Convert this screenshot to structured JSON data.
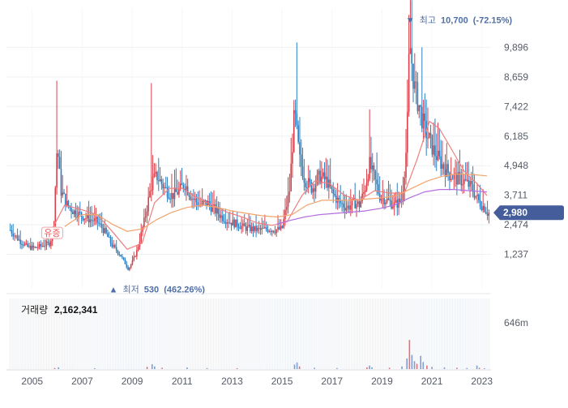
{
  "chart_data": [
    {
      "type": "candlestick",
      "y_ticks": [
        "9,896",
        "8,659",
        "7,422",
        "6,185",
        "4,948",
        "3,711",
        "2,474",
        "1,237"
      ],
      "ylim": [
        0,
        11200
      ],
      "x_ticks": [
        "2005",
        "2007",
        "2009",
        "2011",
        "2013",
        "2015",
        "2017",
        "2019",
        "2021",
        "2023"
      ],
      "xlim": [
        2004.1,
        2023.3
      ],
      "current_price_label": "2,980",
      "current_price": 2980,
      "high": {
        "marker": "▼",
        "label": "최고",
        "value": "10,700",
        "change": "(-72.15%)",
        "x": 2020.05,
        "y": 10700
      },
      "low": {
        "marker": "▲",
        "label": "최저",
        "value": "530",
        "change": "(462.26%)",
        "x": 2008.3,
        "y": 530
      },
      "event_label": "유증",
      "event_x": 2005.8,
      "price_path": [
        [
          2004.12,
          2250
        ],
        [
          2004.5,
          1800
        ],
        [
          2004.8,
          1550
        ],
        [
          2005.1,
          1500
        ],
        [
          2005.4,
          1600
        ],
        [
          2005.7,
          1700
        ],
        [
          2005.85,
          2200
        ],
        [
          2006.0,
          5900
        ],
        [
          2006.15,
          3900
        ],
        [
          2006.4,
          3300
        ],
        [
          2006.7,
          3000
        ],
        [
          2007.0,
          2850
        ],
        [
          2007.3,
          2700
        ],
        [
          2007.6,
          2600
        ],
        [
          2007.9,
          2200
        ],
        [
          2008.2,
          1600
        ],
        [
          2008.5,
          1250
        ],
        [
          2008.7,
          900
        ],
        [
          2008.85,
          600
        ],
        [
          2009.0,
          900
        ],
        [
          2009.2,
          1400
        ],
        [
          2009.5,
          2700
        ],
        [
          2009.8,
          4300
        ],
        [
          2010.0,
          4500
        ],
        [
          2010.3,
          4000
        ],
        [
          2010.6,
          3700
        ],
        [
          2010.9,
          3900
        ],
        [
          2011.1,
          4200
        ],
        [
          2011.4,
          3600
        ],
        [
          2011.7,
          3300
        ],
        [
          2012.0,
          3400
        ],
        [
          2012.3,
          3100
        ],
        [
          2012.6,
          2800
        ],
        [
          2012.9,
          2600
        ],
        [
          2013.2,
          2500
        ],
        [
          2013.5,
          2350
        ],
        [
          2013.8,
          2300
        ],
        [
          2014.1,
          2250
        ],
        [
          2014.4,
          2300
        ],
        [
          2014.7,
          2250
        ],
        [
          2015.0,
          2300
        ],
        [
          2015.3,
          3900
        ],
        [
          2015.5,
          7200
        ],
        [
          2015.7,
          5200
        ],
        [
          2015.9,
          4400
        ],
        [
          2016.2,
          4000
        ],
        [
          2016.5,
          4500
        ],
        [
          2016.8,
          4300
        ],
        [
          2017.0,
          3800
        ],
        [
          2017.3,
          3400
        ],
        [
          2017.6,
          3200
        ],
        [
          2017.9,
          3400
        ],
        [
          2018.1,
          3300
        ],
        [
          2018.3,
          3900
        ],
        [
          2018.5,
          5000
        ],
        [
          2018.7,
          4400
        ],
        [
          2018.9,
          3700
        ],
        [
          2019.2,
          3500
        ],
        [
          2019.5,
          3300
        ],
        [
          2019.8,
          3500
        ],
        [
          2020.0,
          6000
        ],
        [
          2020.1,
          10200
        ],
        [
          2020.3,
          8200
        ],
        [
          2020.5,
          7400
        ],
        [
          2020.7,
          6500
        ],
        [
          2020.9,
          6000
        ],
        [
          2021.1,
          5500
        ],
        [
          2021.4,
          5000
        ],
        [
          2021.7,
          4600
        ],
        [
          2022.0,
          4400
        ],
        [
          2022.3,
          4300
        ],
        [
          2022.6,
          4000
        ],
        [
          2022.9,
          3400
        ],
        [
          2023.1,
          3200
        ],
        [
          2023.2,
          2980
        ]
      ],
      "spikes": [
        [
          2006.0,
          8500
        ],
        [
          2009.75,
          8400
        ],
        [
          2015.6,
          10100
        ],
        [
          2018.5,
          7300
        ],
        [
          2020.05,
          10700
        ],
        [
          2020.3,
          9600
        ],
        [
          2020.6,
          9900
        ],
        [
          2018.8,
          5500
        ]
      ],
      "moving_averages": [
        {
          "color": "#ef7e7e",
          "points": [
            [
              2005.5,
              1700
            ],
            [
              2006.3,
              3300
            ],
            [
              2007.0,
              3100
            ],
            [
              2007.6,
              2900
            ],
            [
              2008.2,
              2200
            ],
            [
              2008.8,
              1450
            ],
            [
              2009.4,
              1700
            ],
            [
              2009.9,
              3400
            ],
            [
              2010.5,
              4000
            ],
            [
              2011.0,
              4000
            ],
            [
              2011.6,
              3600
            ],
            [
              2012.2,
              3300
            ],
            [
              2012.8,
              3000
            ],
            [
              2013.4,
              2800
            ],
            [
              2014.0,
              2550
            ],
            [
              2014.6,
              2450
            ],
            [
              2015.2,
              2600
            ],
            [
              2015.8,
              3700
            ],
            [
              2016.3,
              4300
            ],
            [
              2016.9,
              4200
            ],
            [
              2017.5,
              3700
            ],
            [
              2018.1,
              3500
            ],
            [
              2018.7,
              3900
            ],
            [
              2019.3,
              3800
            ],
            [
              2019.9,
              3800
            ],
            [
              2020.4,
              5200
            ],
            [
              2020.9,
              6800
            ],
            [
              2021.3,
              6500
            ],
            [
              2021.8,
              5600
            ],
            [
              2022.3,
              4700
            ],
            [
              2022.8,
              4200
            ],
            [
              2023.2,
              3700
            ]
          ]
        },
        {
          "color": "#f2a46d",
          "points": [
            [
              2006.3,
              2400
            ],
            [
              2007.0,
              2900
            ],
            [
              2007.6,
              2900
            ],
            [
              2008.2,
              2500
            ],
            [
              2008.8,
              2200
            ],
            [
              2009.4,
              2300
            ],
            [
              2010.0,
              2700
            ],
            [
              2010.6,
              3000
            ],
            [
              2011.2,
              3200
            ],
            [
              2011.8,
              3300
            ],
            [
              2012.4,
              3200
            ],
            [
              2013.0,
              3050
            ],
            [
              2013.6,
              2950
            ],
            [
              2014.2,
              2850
            ],
            [
              2014.8,
              2800
            ],
            [
              2015.4,
              2900
            ],
            [
              2016.0,
              3300
            ],
            [
              2016.6,
              3500
            ],
            [
              2017.2,
              3500
            ],
            [
              2017.8,
              3500
            ],
            [
              2018.4,
              3550
            ],
            [
              2019.0,
              3600
            ],
            [
              2019.6,
              3700
            ],
            [
              2020.2,
              4000
            ],
            [
              2020.8,
              4300
            ],
            [
              2021.4,
              4500
            ],
            [
              2022.0,
              4600
            ],
            [
              2022.6,
              4580
            ],
            [
              2023.2,
              4520
            ]
          ]
        },
        {
          "color": "#b46ee2",
          "points": [
            [
              2014.8,
              2500
            ],
            [
              2015.3,
              2650
            ],
            [
              2015.9,
              2800
            ],
            [
              2016.5,
              2900
            ],
            [
              2017.1,
              2950
            ],
            [
              2017.7,
              3000
            ],
            [
              2018.3,
              3050
            ],
            [
              2018.9,
              3150
            ],
            [
              2019.5,
              3300
            ],
            [
              2020.1,
              3600
            ],
            [
              2020.7,
              3850
            ],
            [
              2021.3,
              3950
            ],
            [
              2021.9,
              3950
            ],
            [
              2022.5,
              3900
            ],
            [
              2023.2,
              3850
            ]
          ]
        }
      ]
    },
    {
      "type": "bar",
      "title": "거래량",
      "value": "2,162,341",
      "y_tick": "646m",
      "ylim": [
        0,
        800
      ],
      "xlim": [
        2004.1,
        2023.3
      ],
      "volumes": [
        [
          2005.9,
          12
        ],
        [
          2006.05,
          20
        ],
        [
          2007.5,
          10
        ],
        [
          2009.6,
          25
        ],
        [
          2009.8,
          55
        ],
        [
          2009.9,
          30
        ],
        [
          2010.2,
          15
        ],
        [
          2011.2,
          18
        ],
        [
          2012.0,
          12
        ],
        [
          2013.2,
          10
        ],
        [
          2015.5,
          50
        ],
        [
          2015.6,
          75
        ],
        [
          2015.7,
          30
        ],
        [
          2016.3,
          15
        ],
        [
          2017.2,
          12
        ],
        [
          2018.4,
          20
        ],
        [
          2018.5,
          40
        ],
        [
          2018.6,
          20
        ],
        [
          2019.3,
          15
        ],
        [
          2019.8,
          30
        ],
        [
          2020.0,
          120
        ],
        [
          2020.1,
          330
        ],
        [
          2020.2,
          160
        ],
        [
          2020.3,
          90
        ],
        [
          2020.4,
          60
        ],
        [
          2020.55,
          150
        ],
        [
          2020.65,
          80
        ],
        [
          2020.8,
          40
        ],
        [
          2021.0,
          25
        ],
        [
          2021.5,
          20
        ],
        [
          2022.0,
          15
        ],
        [
          2022.4,
          12
        ],
        [
          2022.8,
          40
        ],
        [
          2022.9,
          15
        ],
        [
          2023.1,
          10
        ]
      ]
    }
  ]
}
